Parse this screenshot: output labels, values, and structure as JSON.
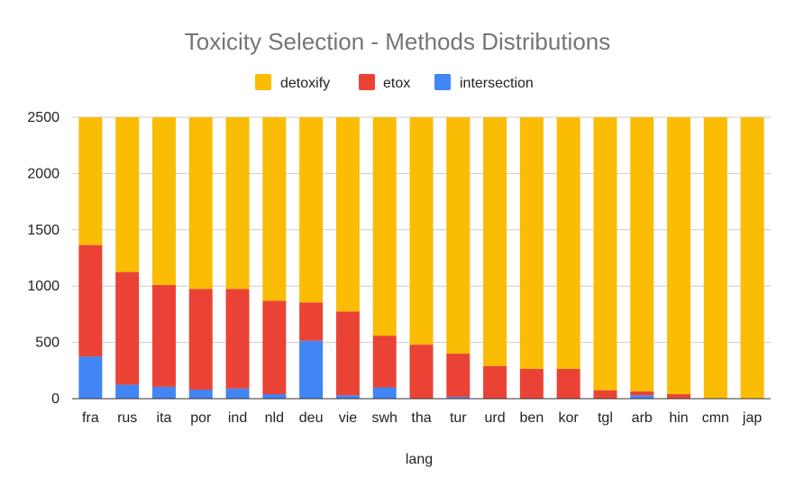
{
  "chart_data": {
    "type": "bar",
    "stacked": true,
    "title": "Toxicity Selection - Methods Distributions",
    "xlabel": "lang",
    "ylabel": "",
    "ylim": [
      0,
      2500
    ],
    "yticks": [
      0,
      500,
      1000,
      1500,
      2000,
      2500
    ],
    "grid": true,
    "legend_position": "top",
    "categories": [
      "fra",
      "rus",
      "ita",
      "por",
      "ind",
      "nld",
      "deu",
      "vie",
      "swh",
      "tha",
      "tur",
      "urd",
      "ben",
      "kor",
      "tgl",
      "arb",
      "hin",
      "cmn",
      "jap"
    ],
    "series": [
      {
        "name": "intersection",
        "color": "#4285F4",
        "values": [
          375,
          125,
          105,
          80,
          90,
          40,
          515,
          30,
          100,
          0,
          15,
          0,
          0,
          0,
          0,
          30,
          0,
          0,
          0
        ]
      },
      {
        "name": "etox",
        "color": "#EA4335",
        "values": [
          990,
          1000,
          905,
          895,
          885,
          830,
          340,
          745,
          460,
          480,
          385,
          290,
          265,
          265,
          75,
          35,
          40,
          0,
          0
        ]
      },
      {
        "name": "detoxify",
        "color": "#FBBC04",
        "values": [
          1135,
          1375,
          1490,
          1525,
          1525,
          1630,
          1645,
          1725,
          1940,
          2020,
          2100,
          2210,
          2235,
          2235,
          2425,
          2435,
          2460,
          2500,
          2500
        ]
      }
    ],
    "legend_order": [
      "detoxify",
      "etox",
      "intersection"
    ]
  },
  "colors": {
    "title": "#757575",
    "axis_text": "#222222",
    "gridline": "#cccccc",
    "baseline": "#333333"
  }
}
